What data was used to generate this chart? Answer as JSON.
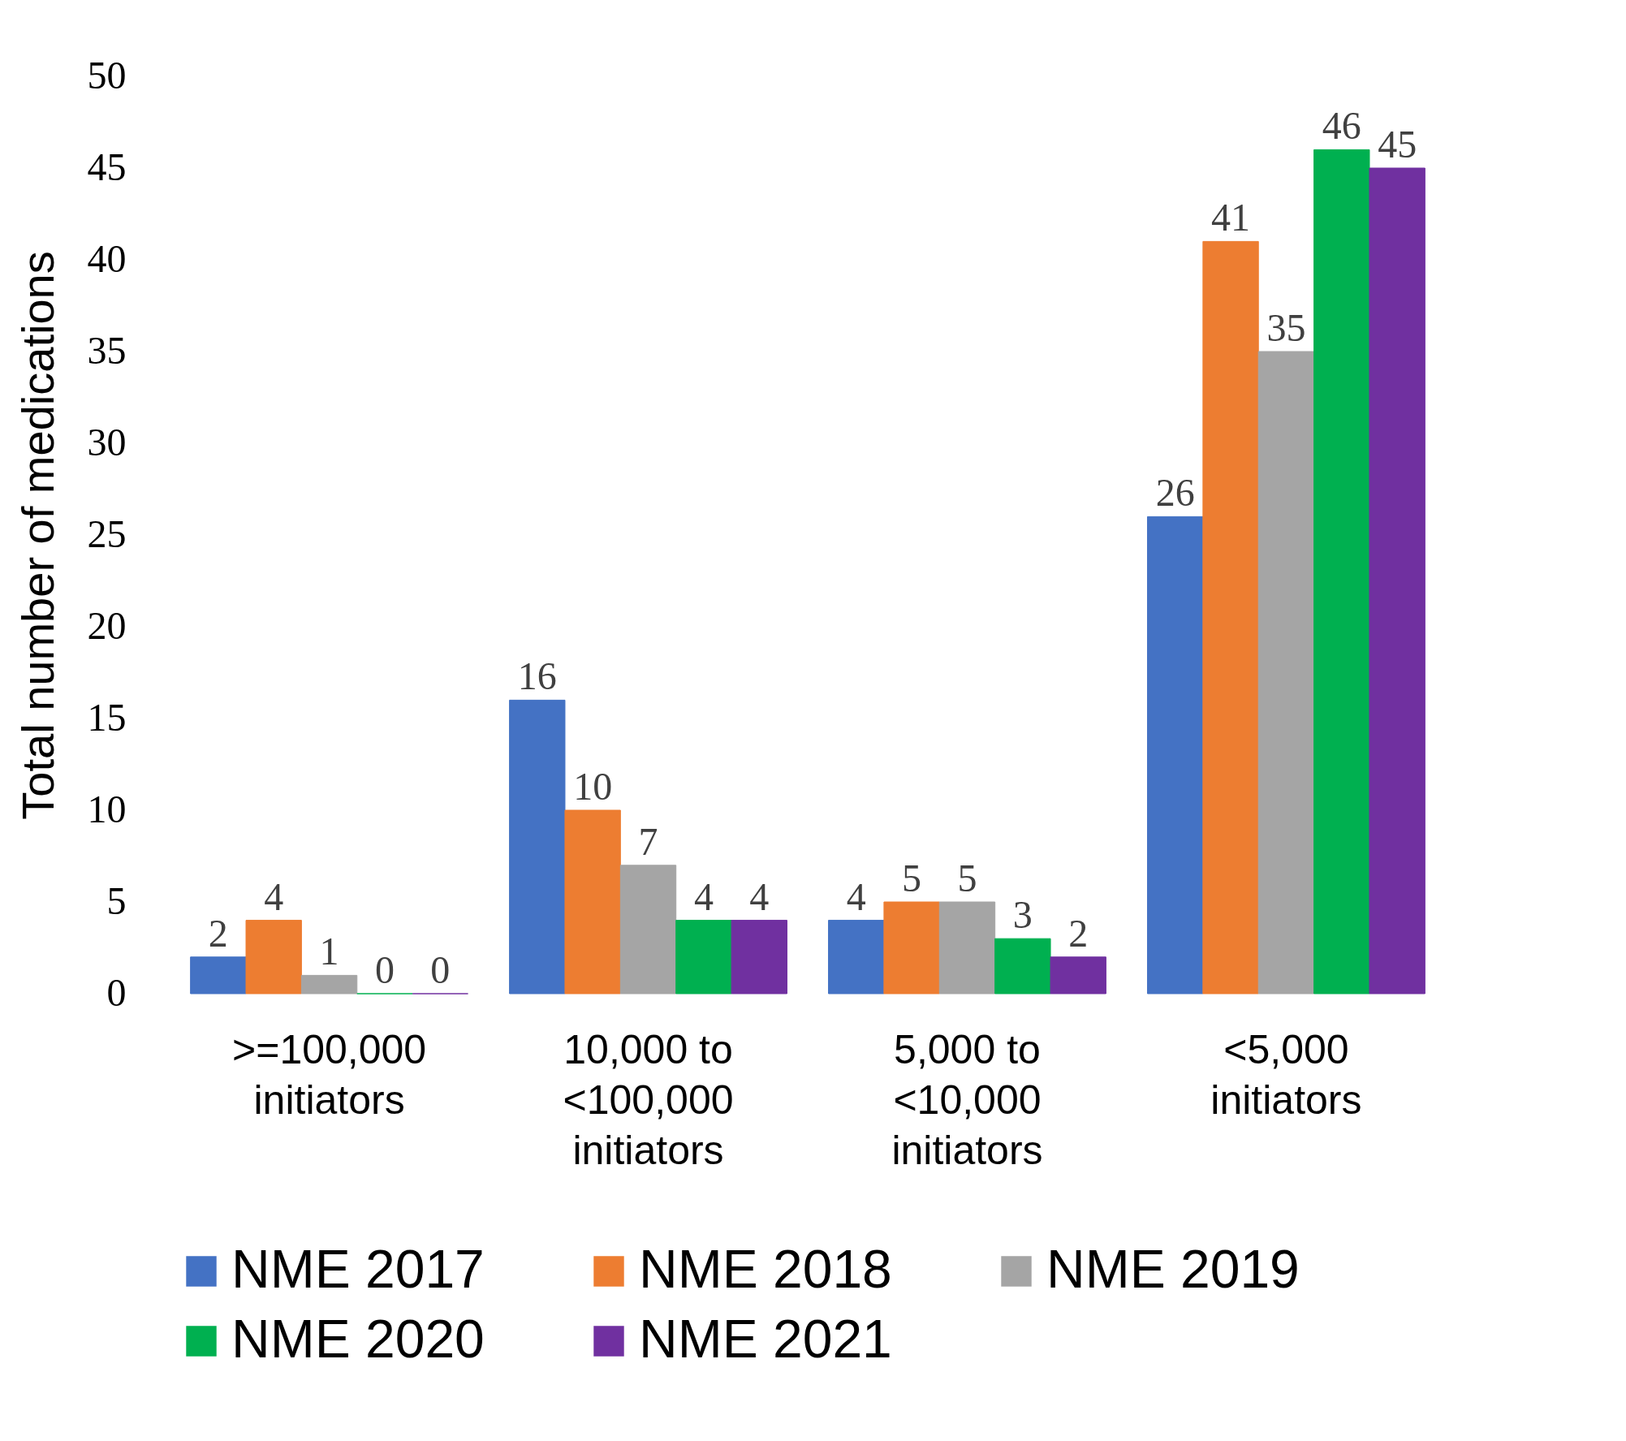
{
  "chart_data": {
    "type": "bar",
    "ylabel": "Total number of medications",
    "categories": [
      ">=100,000 initiators",
      "10,000 to <100,000 initiators",
      "5,000 to <10,000 initiators",
      "<5,000 initiators"
    ],
    "series": [
      {
        "name": "NME 2017",
        "color": "#4472c4",
        "values": [
          2,
          16,
          4,
          26
        ]
      },
      {
        "name": "NME 2018",
        "color": "#ed7d31",
        "values": [
          4,
          10,
          5,
          41
        ]
      },
      {
        "name": "NME 2019",
        "color": "#a5a5a5",
        "values": [
          1,
          7,
          5,
          35
        ]
      },
      {
        "name": "NME 2020",
        "color": "#00b050",
        "values": [
          0,
          4,
          3,
          46
        ]
      },
      {
        "name": "NME 2021",
        "color": "#7030a0",
        "values": [
          0,
          4,
          2,
          45
        ]
      }
    ],
    "ylim": [
      0,
      50
    ],
    "yticks": [
      0,
      5,
      10,
      15,
      20,
      25,
      30,
      35,
      40,
      45,
      50
    ],
    "data_labels": true,
    "grid": false,
    "legend": "bottom"
  }
}
